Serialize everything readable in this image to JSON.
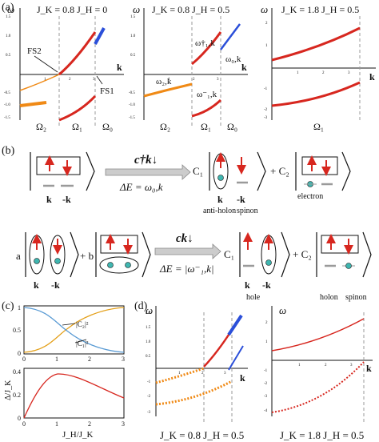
{
  "colors": {
    "red": "#d7271f",
    "blue": "#2b4fd9",
    "orange": "#f08a16",
    "lightblue": "#5a9bd4",
    "gold": "#e4a01a",
    "dash": "#9a9a9a",
    "teal": "#3fb6b0",
    "oval": "#8c8c8c"
  },
  "panel_labels": {
    "a": "(a)",
    "b": "(b)",
    "c": "(c)",
    "d": "(d)"
  },
  "panel_a": {
    "sub1": {
      "title": "J_K = 0.8  J_H = 0",
      "omega": "ω",
      "k": "k",
      "fs2": "FS2",
      "fs1": "FS1",
      "regions": [
        "Ω₂",
        "Ω₁",
        "Ω₀"
      ],
      "xticks": [
        "1",
        "2",
        "3"
      ],
      "yticks": [
        "1.5",
        "1.0",
        "0.5",
        "-0.5",
        "-1.0",
        "-1.5"
      ]
    },
    "sub2": {
      "title": "J_K = 0.8  J_H = 0.5",
      "omega": "ω",
      "k": "k",
      "curves": [
        "ω†₁,k",
        "ω₀,k",
        "ω₂,k",
        "ω⁻₁,k"
      ],
      "regions": [
        "Ω₂",
        "Ω₁",
        "Ω₀"
      ],
      "xticks": [
        "1",
        "2",
        "3"
      ],
      "yticks": [
        "1.5",
        "1.0",
        "0.5",
        "-0.5",
        "-1.0",
        "-1.5"
      ]
    },
    "sub3": {
      "title": "J_K = 1.8  J_H = 0.5",
      "omega": "ω",
      "k": "k",
      "regions": [
        "Ω₁"
      ],
      "xticks": [
        "1",
        "2",
        "3"
      ],
      "yticks": [
        "2",
        "1",
        "-1",
        "-2",
        "-3"
      ]
    }
  },
  "panel_b": {
    "row1": {
      "op": "c†k↓",
      "energy": "ΔE = ω₀,k",
      "c1": "C₁",
      "c2": "+ C₂",
      "labels": [
        "anti-holon",
        "spinon",
        "electron"
      ],
      "k": "k",
      "mk": "-k"
    },
    "row2": {
      "a": "a",
      "b": "+ b",
      "op": "ck↓",
      "energy": "ΔE = |ω⁻₁,k|",
      "c1": "C₁",
      "c2": "+ C₂",
      "labels": [
        "hole",
        "holon",
        "spinon"
      ],
      "k": "k",
      "mk": "-k"
    }
  },
  "panel_c": {
    "top": {
      "c2": "|C₂|²",
      "c1": "|C₁|²",
      "xticks": [
        "0",
        "1",
        "2",
        "3"
      ],
      "yticks": [
        "0",
        "0.5",
        "1"
      ]
    },
    "bottom": {
      "ylabel": "Δ/J_K",
      "xlabel": "J_H/J_K",
      "xticks": [
        "0",
        "1",
        "2",
        "3"
      ],
      "yticks": [
        "0",
        "0.2",
        "0.4"
      ]
    }
  },
  "panel_d": {
    "sub1": {
      "omega": "ω",
      "k": "k",
      "caption": "J_K = 0.8  J_H = 0.5",
      "xticks": [
        "1",
        "2",
        "3"
      ],
      "yticks": [
        "2.0",
        "1.5",
        "1.0",
        "0.5",
        "-1",
        "-2",
        "-3"
      ]
    },
    "sub2": {
      "omega": "ω",
      "k": "k",
      "caption": "J_K = 1.8  J_H = 0.5",
      "xticks": [
        "1",
        "2",
        "3"
      ],
      "yticks": [
        "2",
        "1",
        "-1",
        "-2",
        "-3",
        "-4"
      ]
    }
  },
  "chart_data": [
    {
      "type": "line",
      "ylabel": "ω",
      "xlabel": "k",
      "xlim": [
        0,
        3.14
      ],
      "ylim": [
        -1.5,
        1.5
      ],
      "series": [
        {
          "x": [
            1.6,
            2.0,
            2.5,
            3.14
          ],
          "y": [
            0.0,
            0.32,
            0.72,
            1.22
          ]
        },
        {
          "x": [
            3.14,
            3.5
          ],
          "y": [
            0.75,
            1.15
          ]
        },
        {
          "x": [
            0.0,
            0.8,
            1.6
          ],
          "y": [
            -1.4,
            -0.6,
            0.0
          ]
        },
        {
          "x": [
            0.0,
            0.7
          ],
          "y": [
            -1.2,
            -1.1
          ]
        },
        {
          "x": [
            1.6,
            2.3,
            3.14
          ],
          "y": [
            -1.4,
            -1.1,
            -0.5
          ]
        }
      ]
    },
    {
      "type": "line",
      "ylabel": "ω",
      "xlabel": "k",
      "xlim": [
        0,
        3.14
      ],
      "ylim": [
        -1.5,
        1.5
      ],
      "series": [
        {
          "x": [
            1.85,
            2.4,
            3.14
          ],
          "y": [
            0.3,
            0.65,
            1.25
          ]
        },
        {
          "x": [
            3.14,
            3.5
          ],
          "y": [
            0.75,
            1.15
          ]
        },
        {
          "x": [
            0.0,
            0.9,
            1.85
          ],
          "y": [
            -1.35,
            -0.85,
            -0.35
          ]
        },
        {
          "x": [
            1.85,
            2.5,
            3.14
          ],
          "y": [
            -1.35,
            -1.0,
            -0.5
          ]
        }
      ]
    },
    {
      "type": "line",
      "ylabel": "ω",
      "xlabel": "k",
      "xlim": [
        0,
        3.14
      ],
      "ylim": [
        -3,
        2
      ],
      "series": [
        {
          "x": [
            0.0,
            1.0,
            2.0,
            3.14
          ],
          "y": [
            0.7,
            0.95,
            1.3,
            1.85
          ]
        },
        {
          "x": [
            0.0,
            1.0,
            2.0,
            3.14
          ],
          "y": [
            -2.4,
            -2.2,
            -1.85,
            -1.2
          ]
        }
      ]
    },
    {
      "type": "line",
      "xlabel": "",
      "xlim": [
        0,
        3
      ],
      "ylim": [
        0,
        1
      ],
      "series": [
        {
          "name": "|C₂|²",
          "x": [
            0,
            0.5,
            1.0,
            1.5,
            2.0,
            2.5,
            3.0
          ],
          "y": [
            0.02,
            0.12,
            0.5,
            0.78,
            0.9,
            0.95,
            0.98
          ]
        },
        {
          "name": "|C₁|²",
          "x": [
            0,
            0.5,
            1.0,
            1.5,
            2.0,
            2.5,
            3.0
          ],
          "y": [
            0.98,
            0.88,
            0.5,
            0.22,
            0.1,
            0.05,
            0.02
          ]
        }
      ]
    },
    {
      "type": "line",
      "ylabel": "Δ/J_K",
      "xlabel": "J_H/J_K",
      "xlim": [
        0,
        3
      ],
      "ylim": [
        0,
        0.4
      ],
      "series": [
        {
          "x": [
            0,
            0.3,
            0.6,
            1.0,
            1.5,
            2.0,
            2.5,
            3.0
          ],
          "y": [
            0.0,
            0.15,
            0.31,
            0.36,
            0.33,
            0.27,
            0.22,
            0.17
          ]
        }
      ]
    },
    {
      "type": "line",
      "ylabel": "ω",
      "xlabel": "k",
      "xlim": [
        0,
        3.14
      ],
      "ylim": [
        -3,
        2
      ],
      "series": [
        {
          "x": [
            1.85,
            2.5,
            3.14
          ],
          "y": [
            0.2,
            0.75,
            1.3
          ]
        },
        {
          "x": [
            3.14,
            3.6
          ],
          "y": [
            1.6,
            2.1
          ]
        },
        {
          "x": [
            2.7,
            3.6
          ],
          "y": [
            0.05,
            0.85
          ]
        },
        {
          "x": [
            0,
            1.85
          ],
          "y": [
            -1.1,
            -0.1
          ]
        },
        {
          "x": [
            0,
            1.85,
            3.14
          ],
          "y": [
            -2.5,
            -2.1,
            -1.6
          ]
        }
      ]
    },
    {
      "type": "line",
      "ylabel": "ω",
      "xlabel": "k",
      "xlim": [
        0,
        3.14
      ],
      "ylim": [
        -4,
        2
      ],
      "series": [
        {
          "x": [
            0,
            1.0,
            2.0,
            3.14
          ],
          "y": [
            0.85,
            1.1,
            1.5,
            2.0
          ]
        },
        {
          "x": [
            0,
            1.0,
            2.0,
            3.14
          ],
          "y": [
            -4.3,
            -3.9,
            -3.1,
            -1.4
          ]
        }
      ]
    }
  ]
}
